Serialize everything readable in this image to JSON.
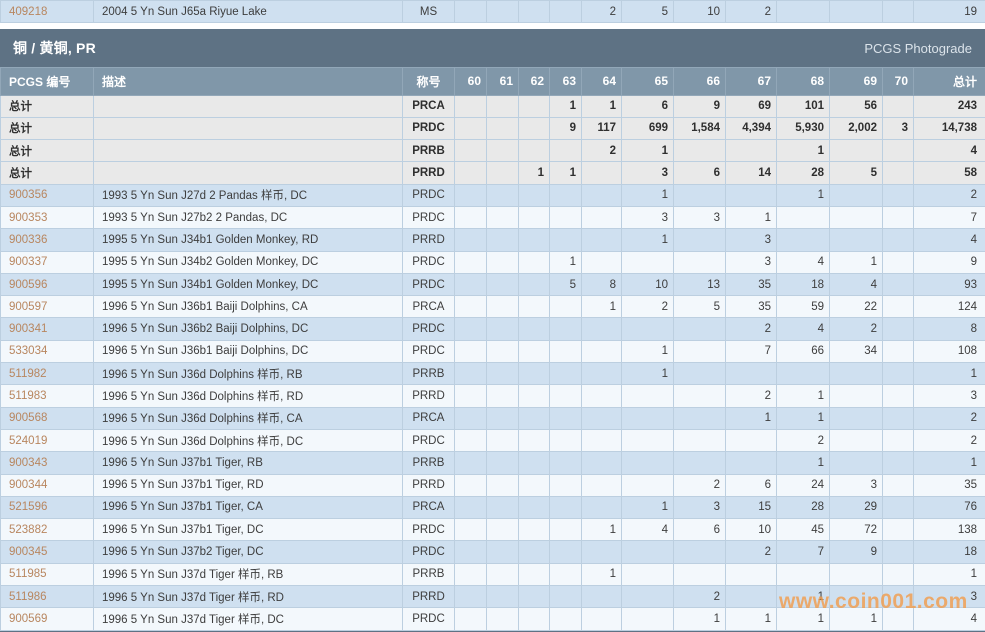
{
  "section": {
    "title": "铜 / 黄铜, PR",
    "right_label": "PCGS Photograde"
  },
  "columns": {
    "pcgs": "PCGS 编号",
    "desc": "描述",
    "designation": "称号",
    "grades": [
      "60",
      "61",
      "62",
      "63",
      "64",
      "65",
      "66",
      "67",
      "68",
      "69",
      "70"
    ],
    "total": "总计"
  },
  "summary_label": "总计",
  "top_row": {
    "pcgs": "409218",
    "desc": "2004 5 Yn Sun J65a Riyue Lake",
    "designation": "MS",
    "counts": [
      "",
      "",
      "",
      "",
      "2",
      "5",
      "10",
      "2",
      "",
      "",
      ""
    ],
    "total": "19"
  },
  "summary_rows": [
    {
      "designation": "PRCA",
      "counts": [
        "",
        "",
        "",
        "1",
        "1",
        "6",
        "9",
        "69",
        "101",
        "56",
        ""
      ],
      "total": "243"
    },
    {
      "designation": "PRDC",
      "counts": [
        "",
        "",
        "",
        "9",
        "117",
        "699",
        "1,584",
        "4,394",
        "5,930",
        "2,002",
        "3"
      ],
      "total": "14,738"
    },
    {
      "designation": "PRRB",
      "counts": [
        "",
        "",
        "",
        "",
        "2",
        "1",
        "",
        "",
        "1",
        "",
        ""
      ],
      "total": "4"
    },
    {
      "designation": "PRRD",
      "counts": [
        "",
        "",
        "1",
        "1",
        "",
        "3",
        "6",
        "14",
        "28",
        "5",
        ""
      ],
      "total": "58"
    }
  ],
  "rows": [
    {
      "pcgs": "900356",
      "desc": "1993 5 Yn Sun J27d 2 Pandas 样币, DC",
      "designation": "PRDC",
      "counts": [
        "",
        "",
        "",
        "",
        "",
        "1",
        "",
        "",
        "1",
        "",
        ""
      ],
      "total": "2"
    },
    {
      "pcgs": "900353",
      "desc": "1993 5 Yn Sun J27b2 2 Pandas, DC",
      "designation": "PRDC",
      "counts": [
        "",
        "",
        "",
        "",
        "",
        "3",
        "3",
        "1",
        "",
        "",
        ""
      ],
      "total": "7"
    },
    {
      "pcgs": "900336",
      "desc": "1995 5 Yn Sun J34b1 Golden Monkey, RD",
      "designation": "PRRD",
      "counts": [
        "",
        "",
        "",
        "",
        "",
        "1",
        "",
        "3",
        "",
        "",
        ""
      ],
      "total": "4"
    },
    {
      "pcgs": "900337",
      "desc": "1995 5 Yn Sun J34b2 Golden Monkey, DC",
      "designation": "PRDC",
      "counts": [
        "",
        "",
        "",
        "1",
        "",
        "",
        "",
        "3",
        "4",
        "1",
        ""
      ],
      "total": "9"
    },
    {
      "pcgs": "900596",
      "desc": "1995 5 Yn Sun J34b1 Golden Monkey, DC",
      "designation": "PRDC",
      "counts": [
        "",
        "",
        "",
        "5",
        "8",
        "10",
        "13",
        "35",
        "18",
        "4",
        ""
      ],
      "total": "93"
    },
    {
      "pcgs": "900597",
      "desc": "1996 5 Yn Sun J36b1 Baiji Dolphins, CA",
      "designation": "PRCA",
      "counts": [
        "",
        "",
        "",
        "",
        "1",
        "2",
        "5",
        "35",
        "59",
        "22",
        ""
      ],
      "total": "124"
    },
    {
      "pcgs": "900341",
      "desc": "1996 5 Yn Sun J36b2 Baiji Dolphins, DC",
      "designation": "PRDC",
      "counts": [
        "",
        "",
        "",
        "",
        "",
        "",
        "",
        "2",
        "4",
        "2",
        ""
      ],
      "total": "8"
    },
    {
      "pcgs": "533034",
      "desc": "1996 5 Yn Sun J36b1 Baiji Dolphins, DC",
      "designation": "PRDC",
      "counts": [
        "",
        "",
        "",
        "",
        "",
        "1",
        "",
        "7",
        "66",
        "34",
        ""
      ],
      "total": "108"
    },
    {
      "pcgs": "511982",
      "desc": "1996 5 Yn Sun J36d Dolphins 样币, RB",
      "designation": "PRRB",
      "counts": [
        "",
        "",
        "",
        "",
        "",
        "1",
        "",
        "",
        "",
        "",
        ""
      ],
      "total": "1"
    },
    {
      "pcgs": "511983",
      "desc": "1996 5 Yn Sun J36d Dolphins 样币, RD",
      "designation": "PRRD",
      "counts": [
        "",
        "",
        "",
        "",
        "",
        "",
        "",
        "2",
        "1",
        "",
        ""
      ],
      "total": "3"
    },
    {
      "pcgs": "900568",
      "desc": "1996 5 Yn Sun J36d Dolphins 样币, CA",
      "designation": "PRCA",
      "counts": [
        "",
        "",
        "",
        "",
        "",
        "",
        "",
        "1",
        "1",
        "",
        ""
      ],
      "total": "2"
    },
    {
      "pcgs": "524019",
      "desc": "1996 5 Yn Sun J36d Dolphins 样币, DC",
      "designation": "PRDC",
      "counts": [
        "",
        "",
        "",
        "",
        "",
        "",
        "",
        "",
        "2",
        "",
        ""
      ],
      "total": "2"
    },
    {
      "pcgs": "900343",
      "desc": "1996 5 Yn Sun J37b1 Tiger, RB",
      "designation": "PRRB",
      "counts": [
        "",
        "",
        "",
        "",
        "",
        "",
        "",
        "",
        "1",
        "",
        ""
      ],
      "total": "1"
    },
    {
      "pcgs": "900344",
      "desc": "1996 5 Yn Sun J37b1 Tiger, RD",
      "designation": "PRRD",
      "counts": [
        "",
        "",
        "",
        "",
        "",
        "",
        "2",
        "6",
        "24",
        "3",
        ""
      ],
      "total": "35"
    },
    {
      "pcgs": "521596",
      "desc": "1996 5 Yn Sun J37b1 Tiger, CA",
      "designation": "PRCA",
      "counts": [
        "",
        "",
        "",
        "",
        "",
        "1",
        "3",
        "15",
        "28",
        "29",
        ""
      ],
      "total": "76"
    },
    {
      "pcgs": "523882",
      "desc": "1996 5 Yn Sun J37b1 Tiger, DC",
      "designation": "PRDC",
      "counts": [
        "",
        "",
        "",
        "",
        "1",
        "4",
        "6",
        "10",
        "45",
        "72",
        ""
      ],
      "total": "138"
    },
    {
      "pcgs": "900345",
      "desc": "1996 5 Yn Sun J37b2 Tiger, DC",
      "designation": "PRDC",
      "counts": [
        "",
        "",
        "",
        "",
        "",
        "",
        "",
        "2",
        "7",
        "9",
        ""
      ],
      "total": "18"
    },
    {
      "pcgs": "511985",
      "desc": "1996 5 Yn Sun J37d Tiger 样币, RB",
      "designation": "PRRB",
      "counts": [
        "",
        "",
        "",
        "",
        "1",
        "",
        "",
        "",
        "",
        "",
        ""
      ],
      "total": "1"
    },
    {
      "pcgs": "511986",
      "desc": "1996 5 Yn Sun J37d Tiger 样币, RD",
      "designation": "PRRD",
      "counts": [
        "",
        "",
        "",
        "",
        "",
        "",
        "2",
        "",
        "1",
        "",
        ""
      ],
      "total": "3"
    },
    {
      "pcgs": "900569",
      "desc": "1996 5 Yn Sun J37d Tiger 样币, DC",
      "designation": "PRDC",
      "counts": [
        "",
        "",
        "",
        "",
        "",
        "",
        "1",
        "1",
        "1",
        "1",
        ""
      ],
      "total": "4"
    }
  ],
  "watermark": "www.coin001.com",
  "colors": {
    "band_bg": "#5e7284",
    "header_bg": "#8097a9",
    "row_blue": "#cfe0f0",
    "row_white": "#f3f8fc",
    "row_gray": "#e9e9e9",
    "grid": "#bccfe0",
    "link": "#b8865f",
    "watermark": "#f29c4a",
    "text": "#3d3d3d",
    "header_text": "#ffffff"
  }
}
